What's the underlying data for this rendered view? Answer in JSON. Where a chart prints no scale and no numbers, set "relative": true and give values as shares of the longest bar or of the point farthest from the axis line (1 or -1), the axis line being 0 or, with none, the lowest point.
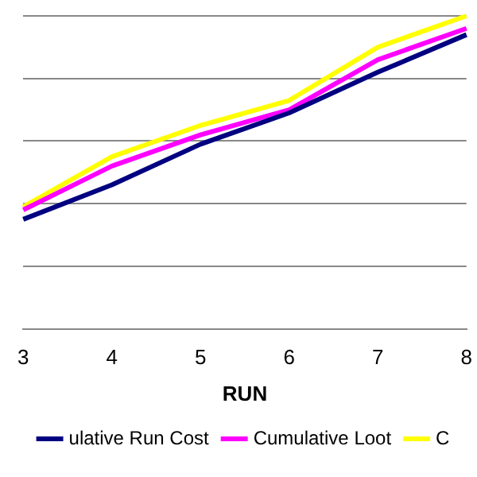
{
  "chart_data": {
    "type": "line",
    "xlabel": "RUN",
    "categories": [
      "3",
      "4",
      "5",
      "6",
      "7",
      "8"
    ],
    "relative": true,
    "grid": "y",
    "legend": "bottom",
    "marker": "none",
    "series": [
      {
        "name": "ulative Run Cost",
        "color": "#000080",
        "values": [
          0.35,
          0.46,
          0.59,
          0.69,
          0.82,
          0.94
        ]
      },
      {
        "name": "Cumulative Loot",
        "color": "#ff00ff",
        "values": [
          0.38,
          0.52,
          0.62,
          0.7,
          0.86,
          0.96
        ]
      },
      {
        "name": "C",
        "color": "#ffff00",
        "values": [
          0.39,
          0.55,
          0.65,
          0.73,
          0.9,
          1
        ]
      }
    ]
  }
}
